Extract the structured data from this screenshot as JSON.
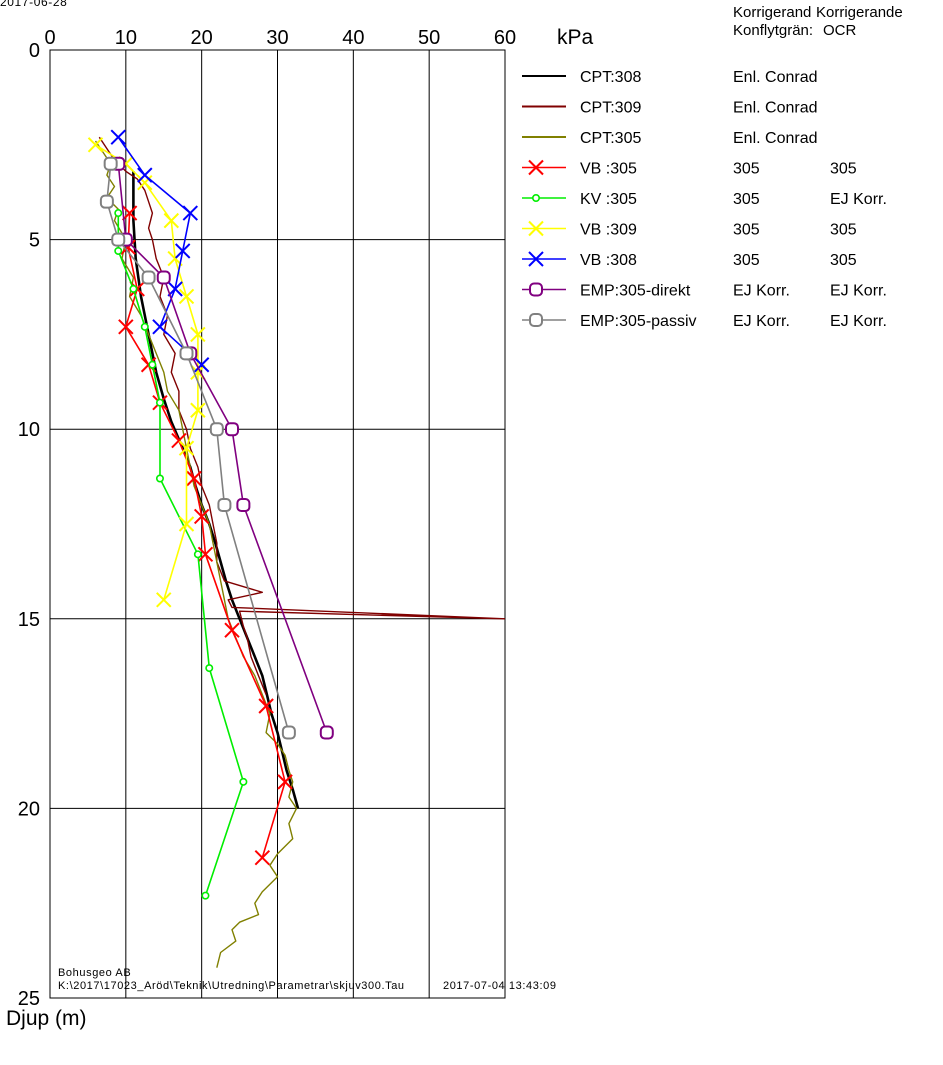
{
  "date_fragment": "2017-06-28",
  "chart_data": {
    "type": "line",
    "x_unit": "kPa",
    "ylabel": "Djup (m)",
    "xlim": [
      0,
      60
    ],
    "ylim": [
      25,
      0
    ],
    "x_ticks": [
      0,
      10,
      20,
      30,
      40,
      50,
      60
    ],
    "y_ticks": [
      0,
      5,
      10,
      15,
      20,
      25
    ],
    "legend_headers": [
      "Korrigerand",
      "Korrigerande",
      "Konflytgrän:",
      "OCR"
    ],
    "series": [
      {
        "name": "CPT:308",
        "col1": "Enl. Conrad",
        "col2": "",
        "color": "#000000",
        "marker": "none",
        "points": [
          [
            11,
            3.2
          ],
          [
            11,
            4.5
          ],
          [
            11.3,
            5.5
          ],
          [
            12,
            6.5
          ],
          [
            13,
            7.5
          ],
          [
            14,
            8.5
          ],
          [
            15,
            9.2
          ],
          [
            16,
            9.8
          ],
          [
            17.5,
            10.5
          ],
          [
            18.5,
            11
          ],
          [
            19.2,
            11.5
          ],
          [
            20,
            12
          ],
          [
            21,
            12.5
          ],
          [
            21.8,
            13
          ],
          [
            22.5,
            13.5
          ],
          [
            23.2,
            14
          ],
          [
            24,
            14.5
          ],
          [
            25,
            15
          ],
          [
            26,
            15.5
          ],
          [
            27,
            16
          ],
          [
            28,
            16.5
          ],
          [
            28.6,
            17
          ],
          [
            29.2,
            17.5
          ],
          [
            30,
            18
          ],
          [
            30.6,
            18.5
          ],
          [
            31.2,
            19
          ],
          [
            32,
            19.5
          ],
          [
            32.7,
            20
          ]
        ]
      },
      {
        "name": "CPT:309",
        "col1": "Enl. Conrad",
        "col2": "",
        "color": "#800000",
        "marker": "none",
        "points": [
          [
            6.5,
            2.3
          ],
          [
            7.5,
            2.6
          ],
          [
            8.5,
            2.9
          ],
          [
            10,
            3.2
          ],
          [
            11.5,
            3.4
          ],
          [
            12.5,
            3.7
          ],
          [
            13,
            4
          ],
          [
            13.5,
            4.3
          ],
          [
            13,
            4.7
          ],
          [
            13.5,
            5
          ],
          [
            14,
            5.5
          ],
          [
            15,
            6
          ],
          [
            14.5,
            6.5
          ],
          [
            15.5,
            7
          ],
          [
            15,
            7.5
          ],
          [
            16.5,
            8
          ],
          [
            16,
            8.5
          ],
          [
            17,
            9
          ],
          [
            17,
            9.5
          ],
          [
            18,
            10
          ],
          [
            18.5,
            10.5
          ],
          [
            19.5,
            11
          ],
          [
            20,
            11.5
          ],
          [
            21,
            12
          ],
          [
            21.5,
            12.5
          ],
          [
            22,
            13
          ],
          [
            22,
            13.5
          ],
          [
            23,
            14
          ],
          [
            28,
            14.3
          ],
          [
            23.5,
            14.5
          ],
          [
            24,
            14.7
          ],
          [
            60,
            15
          ],
          [
            25,
            14.8
          ],
          [
            25.5,
            15.2
          ],
          [
            26,
            15.5
          ],
          [
            26.5,
            16
          ],
          [
            27.5,
            16.5
          ],
          [
            28.5,
            17
          ]
        ]
      },
      {
        "name": "CPT:305",
        "col1": "Enl. Conrad",
        "col2": "",
        "color": "#808000",
        "marker": "none",
        "points": [
          [
            6,
            2.4
          ],
          [
            7,
            2.7
          ],
          [
            8,
            3
          ],
          [
            7.5,
            3.3
          ],
          [
            8.5,
            3.6
          ],
          [
            7.5,
            3.9
          ],
          [
            9,
            4.2
          ],
          [
            8.5,
            4.5
          ],
          [
            10,
            5
          ],
          [
            9.5,
            5.5
          ],
          [
            11,
            6
          ],
          [
            10.5,
            6.5
          ],
          [
            12,
            7
          ],
          [
            13,
            7.5
          ],
          [
            14,
            8
          ],
          [
            15,
            8.5
          ],
          [
            15.5,
            9
          ],
          [
            17,
            9.5
          ],
          [
            17.5,
            10
          ],
          [
            18,
            10.5
          ],
          [
            18.5,
            11
          ],
          [
            19,
            11.5
          ],
          [
            20,
            12
          ],
          [
            21,
            12.5
          ],
          [
            21.5,
            13
          ],
          [
            22,
            13.5
          ],
          [
            22.5,
            14
          ],
          [
            23,
            14.5
          ],
          [
            23.5,
            15
          ],
          [
            24.5,
            15.5
          ],
          [
            25.5,
            16
          ],
          [
            27,
            16.5
          ],
          [
            28,
            17
          ],
          [
            29,
            17.5
          ],
          [
            28.5,
            18
          ],
          [
            30,
            18.3
          ],
          [
            31,
            18.6
          ],
          [
            31.5,
            19
          ],
          [
            32,
            19.3
          ],
          [
            31.5,
            19.7
          ],
          [
            32.5,
            20
          ],
          [
            31.5,
            20.4
          ],
          [
            32,
            20.8
          ],
          [
            30,
            21.2
          ],
          [
            29,
            21.5
          ],
          [
            30,
            21.8
          ],
          [
            28,
            22.2
          ],
          [
            27,
            22.5
          ],
          [
            27.5,
            22.8
          ],
          [
            25,
            23
          ],
          [
            24,
            23.2
          ],
          [
            24.5,
            23.5
          ],
          [
            22.5,
            23.8
          ],
          [
            22,
            24.2
          ]
        ]
      },
      {
        "name": "VB :305",
        "col1": "305",
        "col2": "305",
        "color": "#ff0000",
        "marker": "x",
        "points": [
          [
            10.5,
            4.3
          ],
          [
            10.3,
            5.2
          ],
          [
            11.5,
            6.3
          ],
          [
            10,
            7.3
          ],
          [
            13,
            8.3
          ],
          [
            14.5,
            9.3
          ],
          [
            17,
            10.3
          ],
          [
            19,
            11.3
          ],
          [
            20,
            12.3
          ],
          [
            20.5,
            13.3
          ],
          [
            24,
            15.3
          ],
          [
            28.5,
            17.3
          ],
          [
            31,
            19.3
          ],
          [
            28,
            21.3
          ]
        ]
      },
      {
        "name": "KV :305",
        "col1": "305",
        "col2": "EJ Korr.",
        "color": "#00ee00",
        "marker": "dot",
        "points": [
          [
            9,
            4.3
          ],
          [
            9,
            5.3
          ],
          [
            11,
            6.3
          ],
          [
            12.5,
            7.3
          ],
          [
            13.5,
            8.3
          ],
          [
            14.5,
            9.3
          ],
          [
            14.5,
            11.3
          ],
          [
            19.5,
            13.3
          ],
          [
            21,
            16.3
          ],
          [
            25.5,
            19.3
          ],
          [
            20.5,
            22.3
          ]
        ]
      },
      {
        "name": "VB :309",
        "col1": "305",
        "col2": "305",
        "color": "#ffff00",
        "marker": "x",
        "points": [
          [
            6,
            2.5
          ],
          [
            10,
            3
          ],
          [
            12.5,
            3.5
          ],
          [
            16,
            4.5
          ],
          [
            16.5,
            5.5
          ],
          [
            18,
            6.5
          ],
          [
            19.5,
            7.5
          ],
          [
            19.5,
            8.5
          ],
          [
            19.5,
            9.5
          ],
          [
            18,
            10.5
          ],
          [
            18,
            12.5
          ],
          [
            15,
            14.5
          ]
        ]
      },
      {
        "name": "VB :308",
        "col1": "305",
        "col2": "305",
        "color": "#0000ff",
        "marker": "x",
        "points": [
          [
            9,
            2.3
          ],
          [
            12.5,
            3.3
          ],
          [
            18.5,
            4.3
          ],
          [
            17.5,
            5.3
          ],
          [
            16.5,
            6.3
          ],
          [
            14.5,
            7.3
          ],
          [
            20,
            8.3
          ]
        ]
      },
      {
        "name": "EMP:305-direkt",
        "col1": "EJ Korr.",
        "col2": "EJ Korr.",
        "color": "#800080",
        "marker": "square",
        "points": [
          [
            9,
            3
          ],
          [
            10,
            5
          ],
          [
            15,
            6
          ],
          [
            18.5,
            8
          ],
          [
            24,
            10
          ],
          [
            25.5,
            12
          ],
          [
            36.5,
            18
          ]
        ]
      },
      {
        "name": "EMP:305-passiv",
        "col1": "EJ Korr.",
        "col2": "EJ Korr.",
        "color": "#808080",
        "marker": "square",
        "points": [
          [
            8,
            3
          ],
          [
            7.5,
            4
          ],
          [
            9,
            5
          ],
          [
            13,
            6
          ],
          [
            18,
            8
          ],
          [
            22,
            10
          ],
          [
            23,
            12
          ],
          [
            31.5,
            18
          ]
        ]
      }
    ]
  },
  "footer": {
    "company": "Bohusgeo AB",
    "path": "K:\\2017\\17023_Aröd\\Teknik\\Utredning\\Parametrar\\skjuv300.Tau",
    "timestamp": "2017-07-04 13:43:09"
  }
}
